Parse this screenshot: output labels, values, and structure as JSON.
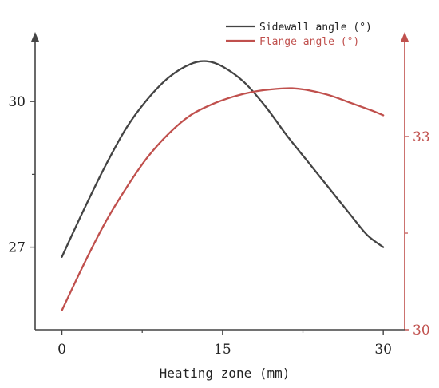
{
  "chart_data": {
    "type": "line",
    "title": "",
    "xlabel": "Heating zone (mm)",
    "x_ticks": [
      0,
      15,
      30
    ],
    "x_tick_labels": [
      "0",
      "15",
      "30"
    ],
    "xlim": [
      -2.5,
      32
    ],
    "left_axis": {
      "ylabel": "",
      "ylim": [
        25.3,
        31.4
      ],
      "ticks": [
        27,
        30
      ],
      "tick_labels": [
        "27",
        "30"
      ],
      "color": "#444444"
    },
    "right_axis": {
      "ylabel": "",
      "ylim": [
        30,
        34.6
      ],
      "ticks": [
        30,
        33
      ],
      "tick_labels": [
        "30",
        "33"
      ],
      "color": "#c0504d"
    },
    "series": [
      {
        "name": "Sidewall angle (°)",
        "axis": "left",
        "color": "#444444",
        "x": [
          0,
          2,
          4,
          6,
          8,
          10,
          12,
          13.5,
          15,
          17,
          19,
          21,
          23,
          25,
          27,
          28.5,
          30
        ],
        "y": [
          26.8,
          27.75,
          28.65,
          29.45,
          30.05,
          30.5,
          30.77,
          30.83,
          30.72,
          30.4,
          29.9,
          29.3,
          28.75,
          28.2,
          27.65,
          27.25,
          27.0
        ]
      },
      {
        "name": "Flange angle   (°)",
        "axis": "right",
        "color": "#c0504d",
        "x": [
          0,
          2,
          4,
          6,
          8,
          10,
          12,
          14,
          16,
          18,
          20,
          21.5,
          23,
          25,
          27,
          29,
          30
        ],
        "y": [
          30.3,
          31.0,
          31.65,
          32.2,
          32.68,
          33.05,
          33.33,
          33.5,
          33.62,
          33.7,
          33.74,
          33.75,
          33.72,
          33.64,
          33.52,
          33.4,
          33.33
        ]
      }
    ],
    "legend_position": "top-right",
    "grid": false
  }
}
